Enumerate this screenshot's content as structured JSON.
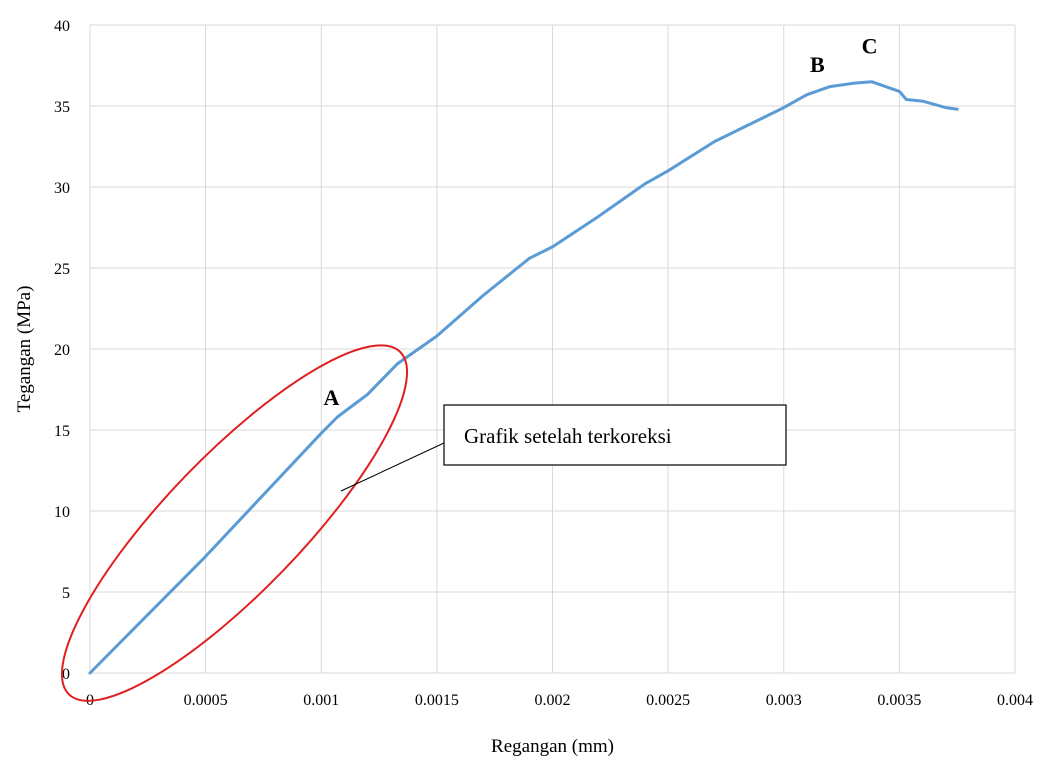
{
  "chart_data": {
    "type": "line",
    "title": "",
    "xlabel": "Regangan (mm)",
    "ylabel": "Tegangan (MPa)",
    "xlim": [
      0,
      0.004
    ],
    "ylim": [
      0,
      40
    ],
    "x_ticks": [
      "0",
      "0.0005",
      "0.001",
      "0.0015",
      "0.002",
      "0.0025",
      "0.003",
      "0.0035",
      "0.004"
    ],
    "y_ticks": [
      "0",
      "5",
      "10",
      "15",
      "20",
      "25",
      "30",
      "35",
      "40"
    ],
    "grid": true,
    "line_color": "#5b9bd5",
    "series": [
      {
        "x": [
          0,
          0.0005,
          0.001,
          0.00107,
          0.0012,
          0.00133,
          0.0015,
          0.0017,
          0.0019,
          0.002,
          0.0022,
          0.0024,
          0.0025,
          0.0027,
          0.0029,
          0.003,
          0.0031,
          0.0032,
          0.0033,
          0.00338,
          0.0035,
          0.00353,
          0.0036,
          0.0037,
          0.00375
        ],
        "y": [
          0,
          7.2,
          14.8,
          15.8,
          17.2,
          19.1,
          20.8,
          23.3,
          25.6,
          26.3,
          28.2,
          30.2,
          31.0,
          32.8,
          34.2,
          34.9,
          35.7,
          36.2,
          36.4,
          36.5,
          35.9,
          35.4,
          35.3,
          34.9,
          34.8
        ]
      }
    ],
    "points": [
      {
        "label": "A",
        "x": 0.00107,
        "y": 15.8
      },
      {
        "label": "B",
        "x": 0.00318,
        "y": 36.0
      },
      {
        "label": "C",
        "x": 0.00338,
        "y": 36.5
      }
    ],
    "annotation": {
      "text": "Grafik setelah terkoreksi",
      "highlight_color": "#e02020",
      "highlight_region": {
        "x": [
          0,
          0.00125
        ],
        "y": [
          0,
          18.5
        ]
      }
    }
  }
}
